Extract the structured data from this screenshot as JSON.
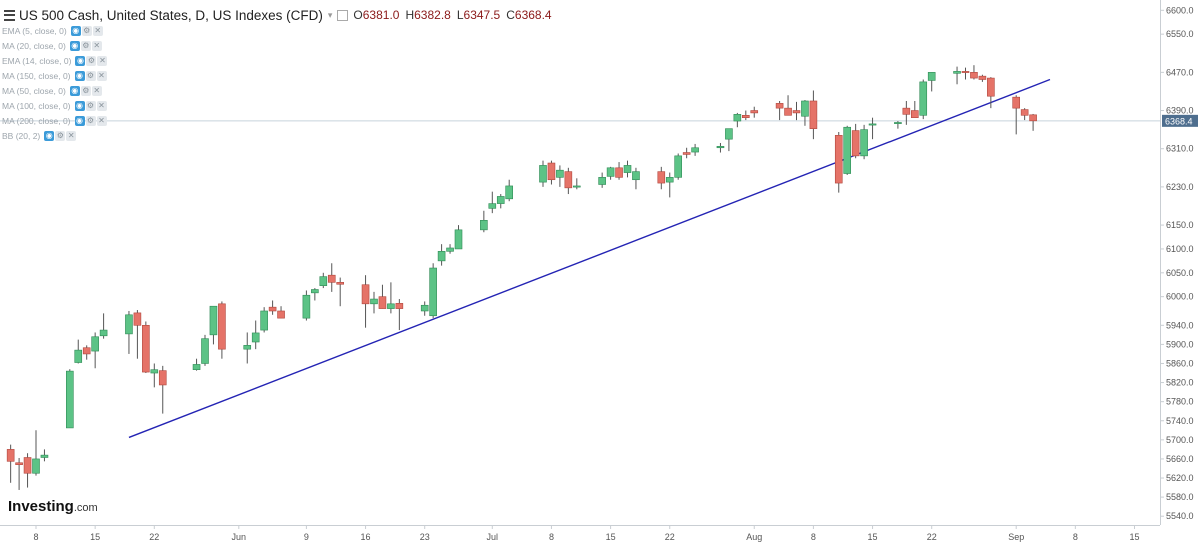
{
  "header": {
    "title": "US 500 Cash, United States, D, US Indexes (CFD)",
    "dropdown_glyph": "▾",
    "ohlc": [
      {
        "label": "O",
        "value": "6381.0"
      },
      {
        "label": "H",
        "value": "6382.8"
      },
      {
        "label": "L",
        "value": "6347.5"
      },
      {
        "label": "C",
        "value": "6368.4"
      }
    ]
  },
  "indicators": [
    "EMA (5, close, 0)",
    "MA (20, close, 0)",
    "EMA (14, close, 0)",
    "MA (150, close, 0)",
    "MA (50, close, 0)",
    "MA (100, close, 0)",
    "MA (200, close, 0)",
    "BB (20, 2)"
  ],
  "icons": {
    "eye": "eye-icon",
    "gear": "gear-icon",
    "close": "close-icon",
    "menu": "hamburger-icon"
  },
  "branding": {
    "name": "Investing",
    "suffix": ".com"
  },
  "colors": {
    "up": "#5cc386",
    "down": "#e57368",
    "up_border": "#2f8a55",
    "down_border": "#b0463c",
    "trendline": "#2424b4",
    "last_price_line": "#c8d3dc",
    "last_price_badge": "#4e6e8e"
  },
  "chart_data": {
    "type": "candlestick",
    "title": "US 500 Cash, United States, D, US Indexes (CFD)",
    "ylim": [
      5525,
      6625
    ],
    "y_ticks": [
      "6600.0",
      "6550.0",
      "6470.0",
      "6390.0",
      "6310.0",
      "6230.0",
      "6150.0",
      "6100.0",
      "6050.0",
      "6000.0",
      "5940.0",
      "5900.0",
      "5860.0",
      "5820.0",
      "5780.0",
      "5740.0",
      "5700.0",
      "5660.0",
      "5620.0",
      "5580.0",
      "5540.0"
    ],
    "x_ticks": [
      "8",
      "15",
      "22",
      "Jun",
      "9",
      "16",
      "23",
      "Jul",
      "8",
      "15",
      "22",
      "Aug",
      "8",
      "15",
      "22",
      "Sep",
      "8",
      "15"
    ],
    "last_price": "6368.4",
    "trendline": {
      "from": {
        "date": "May 19",
        "value": 5705
      },
      "to": {
        "date": "Sep 5",
        "value": 6455
      }
    },
    "candles": [
      {
        "date": "May 5",
        "o": 5680,
        "h": 5690,
        "l": 5610,
        "c": 5655
      },
      {
        "date": "May 6",
        "o": 5652,
        "h": 5662,
        "l": 5595,
        "c": 5648
      },
      {
        "date": "May 7",
        "o": 5663,
        "h": 5672,
        "l": 5600,
        "c": 5630
      },
      {
        "date": "May 8",
        "o": 5630,
        "h": 5720,
        "l": 5625,
        "c": 5660
      },
      {
        "date": "May 9",
        "o": 5663,
        "h": 5680,
        "l": 5655,
        "c": 5668
      },
      {
        "date": "May 12",
        "o": 5725,
        "h": 5848,
        "l": 5725,
        "c": 5844
      },
      {
        "date": "May 13",
        "o": 5862,
        "h": 5910,
        "l": 5860,
        "c": 5888
      },
      {
        "date": "May 14",
        "o": 5893,
        "h": 5898,
        "l": 5868,
        "c": 5880
      },
      {
        "date": "May 15",
        "o": 5886,
        "h": 5925,
        "l": 5850,
        "c": 5916
      },
      {
        "date": "May 16",
        "o": 5918,
        "h": 5965,
        "l": 5912,
        "c": 5930
      },
      {
        "date": "May 19",
        "o": 5922,
        "h": 5970,
        "l": 5880,
        "c": 5962
      },
      {
        "date": "May 20",
        "o": 5966,
        "h": 5972,
        "l": 5870,
        "c": 5940
      },
      {
        "date": "May 21",
        "o": 5940,
        "h": 5948,
        "l": 5840,
        "c": 5842
      },
      {
        "date": "May 22",
        "o": 5840,
        "h": 5860,
        "l": 5810,
        "c": 5847
      },
      {
        "date": "May 23",
        "o": 5845,
        "h": 5855,
        "l": 5755,
        "c": 5815
      },
      {
        "date": "May 27",
        "o": 5847,
        "h": 5870,
        "l": 5845,
        "c": 5858
      },
      {
        "date": "May 28",
        "o": 5860,
        "h": 5920,
        "l": 5855,
        "c": 5912
      },
      {
        "date": "May 29",
        "o": 5920,
        "h": 5980,
        "l": 5900,
        "c": 5980
      },
      {
        "date": "May 30",
        "o": 5985,
        "h": 5990,
        "l": 5870,
        "c": 5890
      },
      {
        "date": "Jun 2",
        "o": 5890,
        "h": 5925,
        "l": 5860,
        "c": 5898
      },
      {
        "date": "Jun 3",
        "o": 5905,
        "h": 5950,
        "l": 5890,
        "c": 5924
      },
      {
        "date": "Jun 4",
        "o": 5930,
        "h": 5978,
        "l": 5925,
        "c": 5970
      },
      {
        "date": "Jun 5",
        "o": 5978,
        "h": 5992,
        "l": 5962,
        "c": 5970
      },
      {
        "date": "Jun 6",
        "o": 5970,
        "h": 5980,
        "l": 5955,
        "c": 5955
      },
      {
        "date": "Jun 9",
        "o": 5955,
        "h": 6013,
        "l": 5950,
        "c": 6003
      },
      {
        "date": "Jun 10",
        "o": 6008,
        "h": 6018,
        "l": 5992,
        "c": 6015
      },
      {
        "date": "Jun 11",
        "o": 6023,
        "h": 6050,
        "l": 6018,
        "c": 6042
      },
      {
        "date": "Jun 12",
        "o": 6045,
        "h": 6070,
        "l": 6010,
        "c": 6030
      },
      {
        "date": "Jun 13",
        "o": 6030,
        "h": 6040,
        "l": 5980,
        "c": 6026
      },
      {
        "date": "Jun 16",
        "o": 6025,
        "h": 6045,
        "l": 5935,
        "c": 5985
      },
      {
        "date": "Jun 17",
        "o": 5985,
        "h": 6010,
        "l": 5965,
        "c": 5995
      },
      {
        "date": "Jun 18",
        "o": 6000,
        "h": 6025,
        "l": 5975,
        "c": 5975
      },
      {
        "date": "Jun 19",
        "o": 5975,
        "h": 6030,
        "l": 5965,
        "c": 5985
      },
      {
        "date": "Jun 20",
        "o": 5986,
        "h": 5995,
        "l": 5930,
        "c": 5975
      },
      {
        "date": "Jun 23",
        "o": 5970,
        "h": 5990,
        "l": 5960,
        "c": 5982
      },
      {
        "date": "Jun 24",
        "o": 5960,
        "h": 6070,
        "l": 5955,
        "c": 6060
      },
      {
        "date": "Jun 25",
        "o": 6075,
        "h": 6110,
        "l": 6065,
        "c": 6095
      },
      {
        "date": "Jun 26",
        "o": 6095,
        "h": 6110,
        "l": 6090,
        "c": 6102
      },
      {
        "date": "Jun 27",
        "o": 6100,
        "h": 6150,
        "l": 6100,
        "c": 6140
      },
      {
        "date": "Jun 30",
        "o": 6140,
        "h": 6180,
        "l": 6135,
        "c": 6160
      },
      {
        "date": "Jul 1",
        "o": 6185,
        "h": 6220,
        "l": 6175,
        "c": 6195
      },
      {
        "date": "Jul 2",
        "o": 6195,
        "h": 6215,
        "l": 6185,
        "c": 6210
      },
      {
        "date": "Jul 3",
        "o": 6205,
        "h": 6245,
        "l": 6200,
        "c": 6232
      },
      {
        "date": "Jul 7",
        "o": 6240,
        "h": 6285,
        "l": 6230,
        "c": 6275
      },
      {
        "date": "Jul 8",
        "o": 6280,
        "h": 6285,
        "l": 6235,
        "c": 6245
      },
      {
        "date": "Jul 9",
        "o": 6250,
        "h": 6275,
        "l": 6230,
        "c": 6265
      },
      {
        "date": "Jul 10",
        "o": 6262,
        "h": 6270,
        "l": 6215,
        "c": 6228
      },
      {
        "date": "Jul 11",
        "o": 6230,
        "h": 6248,
        "l": 6225,
        "c": 6232
      },
      {
        "date": "Jul 14",
        "o": 6235,
        "h": 6260,
        "l": 6228,
        "c": 6250
      },
      {
        "date": "Jul 15",
        "o": 6252,
        "h": 6272,
        "l": 6245,
        "c": 6270
      },
      {
        "date": "Jul 16",
        "o": 6270,
        "h": 6282,
        "l": 6245,
        "c": 6250
      },
      {
        "date": "Jul 17",
        "o": 6260,
        "h": 6285,
        "l": 6250,
        "c": 6275
      },
      {
        "date": "Jul 18",
        "o": 6245,
        "h": 6270,
        "l": 6225,
        "c": 6262
      },
      {
        "date": "Jul 21",
        "o": 6262,
        "h": 6272,
        "l": 6225,
        "c": 6238
      },
      {
        "date": "Jul 22",
        "o": 6240,
        "h": 6260,
        "l": 6208,
        "c": 6250
      },
      {
        "date": "Jul 23",
        "o": 6250,
        "h": 6300,
        "l": 6245,
        "c": 6295
      },
      {
        "date": "Jul 24",
        "o": 6302,
        "h": 6312,
        "l": 6290,
        "c": 6298
      },
      {
        "date": "Jul 25",
        "o": 6303,
        "h": 6320,
        "l": 6295,
        "c": 6312
      },
      {
        "date": "Jul 28",
        "o": 6312,
        "h": 6322,
        "l": 6302,
        "c": 6315
      },
      {
        "date": "Jul 29",
        "o": 6330,
        "h": 6345,
        "l": 6305,
        "c": 6352
      },
      {
        "date": "Jul 30",
        "o": 6368,
        "h": 6385,
        "l": 6355,
        "c": 6382
      },
      {
        "date": "Jul 31",
        "o": 6380,
        "h": 6390,
        "l": 6370,
        "c": 6375
      },
      {
        "date": "Aug 1",
        "o": 6390,
        "h": 6398,
        "l": 6375,
        "c": 6385
      },
      {
        "date": "Aug 4",
        "o": 6405,
        "h": 6410,
        "l": 6370,
        "c": 6395
      },
      {
        "date": "Aug 5",
        "o": 6395,
        "h": 6422,
        "l": 6385,
        "c": 6380
      },
      {
        "date": "Aug 6",
        "o": 6390,
        "h": 6408,
        "l": 6370,
        "c": 6385
      },
      {
        "date": "Aug 7",
        "o": 6378,
        "h": 6412,
        "l": 6358,
        "c": 6410
      },
      {
        "date": "Aug 8",
        "o": 6410,
        "h": 6432,
        "l": 6330,
        "c": 6352
      },
      {
        "date": "Aug 11",
        "o": 6338,
        "h": 6345,
        "l": 6218,
        "c": 6238
      },
      {
        "date": "Aug 12",
        "o": 6258,
        "h": 6358,
        "l": 6255,
        "c": 6355
      },
      {
        "date": "Aug 13",
        "o": 6348,
        "h": 6362,
        "l": 6290,
        "c": 6295
      },
      {
        "date": "Aug 14",
        "o": 6295,
        "h": 6360,
        "l": 6288,
        "c": 6350
      },
      {
        "date": "Aug 15",
        "o": 6362,
        "h": 6375,
        "l": 6330,
        "c": 6362
      },
      {
        "date": "Aug 18",
        "o": 6363,
        "h": 6368,
        "l": 6352,
        "c": 6365
      },
      {
        "date": "Aug 19",
        "o": 6395,
        "h": 6410,
        "l": 6360,
        "c": 6382
      },
      {
        "date": "Aug 20",
        "o": 6390,
        "h": 6410,
        "l": 6375,
        "c": 6375
      },
      {
        "date": "Aug 21",
        "o": 6380,
        "h": 6455,
        "l": 6372,
        "c": 6450
      },
      {
        "date": "Aug 22",
        "o": 6453,
        "h": 6470,
        "l": 6430,
        "c": 6470
      },
      {
        "date": "Aug 25",
        "o": 6468,
        "h": 6482,
        "l": 6445,
        "c": 6472
      },
      {
        "date": "Aug 26",
        "o": 6472,
        "h": 6480,
        "l": 6455,
        "c": 6470
      },
      {
        "date": "Aug 27",
        "o": 6470,
        "h": 6485,
        "l": 6455,
        "c": 6458
      },
      {
        "date": "Aug 28",
        "o": 6462,
        "h": 6465,
        "l": 6450,
        "c": 6455
      },
      {
        "date": "Aug 29",
        "o": 6458,
        "h": 6460,
        "l": 6395,
        "c": 6420
      },
      {
        "date": "Sep 1",
        "o": 6418,
        "h": 6422,
        "l": 6340,
        "c": 6395
      },
      {
        "date": "Sep 2",
        "o": 6392,
        "h": 6395,
        "l": 6370,
        "c": 6380
      },
      {
        "date": "Sep 3",
        "o": 6381.0,
        "h": 6382.8,
        "l": 6347.5,
        "c": 6368.4
      }
    ]
  }
}
